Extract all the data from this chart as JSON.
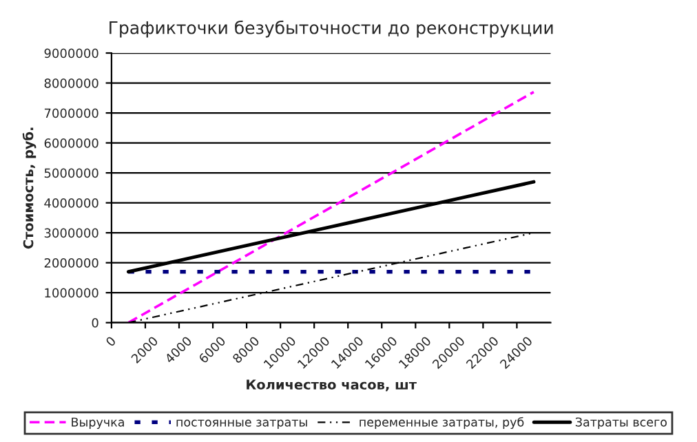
{
  "chart_data": {
    "type": "line",
    "title": "Графикточки безубыточности до реконструкции",
    "xlabel": "Количество часов, шт",
    "ylabel": "Стоимость, руб.",
    "x": [
      1000,
      5000,
      9000,
      13000,
      17000,
      21000,
      25000
    ],
    "series": [
      {
        "name": "Выручка",
        "color": "#ff00ff",
        "line_style": "dashed",
        "values": [
          0,
          1280000,
          2570000,
          3850000,
          5130000,
          6420000,
          7700000
        ]
      },
      {
        "name": "постоянные затраты",
        "color": "#000080",
        "line_style": "dotted",
        "values": [
          1700000,
          1700000,
          1700000,
          1700000,
          1700000,
          1700000,
          1700000
        ]
      },
      {
        "name": "переменные затраты, руб",
        "color": "#000000",
        "line_style": "dashdot",
        "values": [
          0,
          500000,
          1000000,
          1500000,
          2000000,
          2500000,
          3000000
        ]
      },
      {
        "name": "Затраты всего",
        "color": "#000000",
        "line_style": "solid",
        "values": [
          1700000,
          2200000,
          2700000,
          3200000,
          3700000,
          4200000,
          4700000
        ]
      }
    ],
    "xlim": [
      0,
      26000
    ],
    "xticks": [
      0,
      2000,
      4000,
      6000,
      8000,
      10000,
      12000,
      14000,
      16000,
      18000,
      20000,
      22000,
      24000
    ],
    "ylim": [
      0,
      9000000
    ],
    "yticks": [
      0,
      1000000,
      2000000,
      3000000,
      4000000,
      5000000,
      6000000,
      7000000,
      8000000,
      9000000
    ],
    "grid": "y",
    "legend": "bottom",
    "marker": "none"
  }
}
